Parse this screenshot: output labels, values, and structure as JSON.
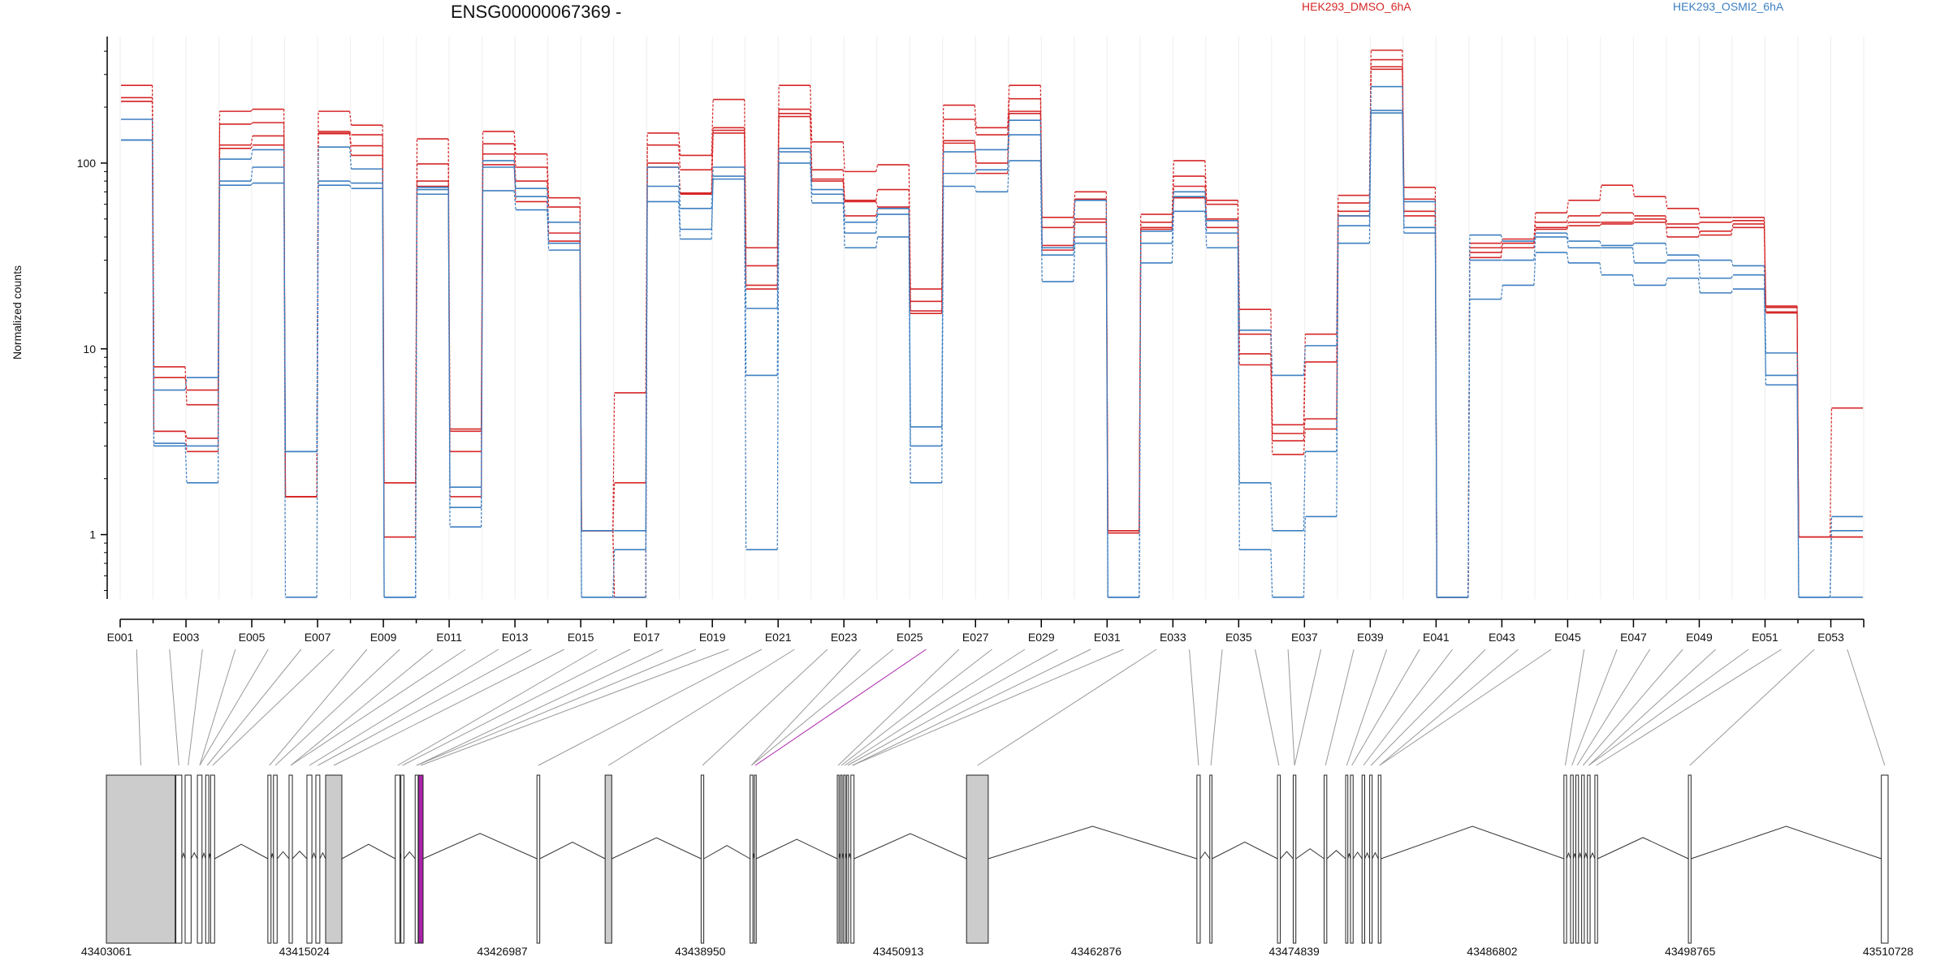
{
  "chart_data": {
    "type": "line",
    "title": "ENSG00000067369 -",
    "ylabel": "Normalized counts",
    "y_scale": "log",
    "ylim": [
      0.45,
      480
    ],
    "y_ticks": [
      1,
      10,
      100
    ],
    "y_tick_labels": [
      "1",
      "10",
      "100"
    ],
    "categories": [
      "E001",
      "E002",
      "E003",
      "E004",
      "E005",
      "E006",
      "E007",
      "E008",
      "E009",
      "E010",
      "E011",
      "E012",
      "E013",
      "E014",
      "E015",
      "E016",
      "E017",
      "E018",
      "E019",
      "E020",
      "E021",
      "E022",
      "E023",
      "E024",
      "E025",
      "E026",
      "E027",
      "E028",
      "E029",
      "E030",
      "E031",
      "E032",
      "E033",
      "E034",
      "E035",
      "E036",
      "E037",
      "E038",
      "E039",
      "E040",
      "E041",
      "E042",
      "E043",
      "E044",
      "E045",
      "E046",
      "E047",
      "E048",
      "E049",
      "E050",
      "E051",
      "E052",
      "E053"
    ],
    "x_tick_labels": [
      "E001",
      "E003",
      "E005",
      "E007",
      "E009",
      "E011",
      "E013",
      "E015",
      "E017",
      "E019",
      "E021",
      "E023",
      "E025",
      "E027",
      "E029",
      "E031",
      "E033",
      "E035",
      "E037",
      "E039",
      "E041",
      "E043",
      "E045",
      "E047",
      "E049",
      "E051",
      "E053"
    ],
    "legend": [
      {
        "name": "HEK293_DMSO_6hA",
        "color": "#d62728"
      },
      {
        "name": "HEK293_OSMI2_6hA",
        "color": "#3d7fc1"
      }
    ],
    "series": [
      {
        "name": "HEK293_DMSO_6hA",
        "color": "#d62728",
        "values": [
          262,
          8,
          5,
          190,
          195,
          1.6,
          190,
          160,
          1.9,
          135,
          3.6,
          148,
          112,
          65,
          1.05,
          5.8,
          145,
          110,
          220,
          35,
          262,
          130,
          90,
          98,
          21,
          205,
          155,
          262,
          51,
          70,
          1.05,
          53,
          103,
          63,
          16.3,
          3.9,
          12,
          67,
          405,
          74,
          0.46,
          37,
          39,
          54,
          63,
          76,
          66,
          57,
          51,
          51,
          17,
          0.97,
          4.8
        ]
      },
      {
        "name": "HEK293_DMSO_6hA",
        "color": "#d62728",
        "values": [
          225,
          7,
          6,
          162,
          165,
          1.6,
          148,
          142,
          1.9,
          99,
          3.7,
          127,
          95,
          58,
          1.05,
          1.9,
          125,
          92,
          155,
          28,
          195,
          92,
          63,
          72,
          18,
          172,
          142,
          222,
          45,
          64,
          1.05,
          48,
          85,
          60,
          12,
          3.2,
          8.5,
          61,
          360,
          64,
          0.46,
          35,
          37,
          48,
          52,
          54,
          52,
          47,
          48,
          49,
          16.7,
          0.97,
          0.97
        ]
      },
      {
        "name": "HEK293_DMSO_6hA",
        "color": "#d62728",
        "values": [
          215,
          3.6,
          3.3,
          125,
          140,
          1.6,
          144,
          124,
          0.97,
          80,
          2.8,
          112,
          80,
          42,
          1.05,
          0.46,
          100,
          68,
          145,
          22,
          185,
          80,
          52,
          57,
          16,
          128,
          100,
          185,
          36,
          50,
          1.02,
          45,
          75,
          50,
          9.4,
          3.5,
          4.2,
          55,
          330,
          55,
          0.46,
          33,
          35,
          45,
          48,
          48,
          50,
          40,
          43,
          45,
          15.8,
          0.97,
          0.97
        ]
      },
      {
        "name": "HEK293_DMSO_6hA",
        "color": "#d62728",
        "values": [
          215,
          3.6,
          2.8,
          120,
          125,
          1.6,
          145,
          110,
          0.97,
          75,
          1.6,
          98,
          62,
          38,
          1.05,
          0.46,
          95,
          69,
          150,
          21,
          178,
          82,
          62,
          58,
          15.5,
          132,
          88,
          190,
          34,
          48,
          1.02,
          44,
          65,
          45,
          8.2,
          2.7,
          3.7,
          52,
          320,
          52,
          0.46,
          31,
          37,
          44,
          46,
          47,
          48,
          45,
          41,
          47,
          15.6,
          0.97,
          0.97
        ]
      },
      {
        "name": "HEK293_OSMI2_6hA",
        "color": "#3d7fc1",
        "values": [
          172,
          6,
          7,
          105,
          118,
          2.8,
          122,
          93,
          0.46,
          74,
          1.8,
          103,
          73,
          48,
          1.05,
          1.05,
          95,
          57,
          95,
          7.2,
          120,
          72,
          48,
          57,
          3.8,
          115,
          118,
          170,
          35,
          63,
          0.46,
          43,
          70,
          49,
          12.6,
          7.2,
          10.4,
          52,
          258,
          62,
          0.46,
          41,
          38,
          42,
          38,
          36,
          37,
          32,
          30,
          28,
          9.5,
          0.46,
          1.25
        ]
      },
      {
        "name": "HEK293_OSMI2_6hA",
        "color": "#3d7fc1",
        "values": [
          133,
          3,
          3,
          80,
          95,
          2.8,
          80,
          78,
          0.46,
          72,
          1.4,
          95,
          66,
          37,
          0.46,
          0.83,
          75,
          44,
          85,
          0.83,
          115,
          68,
          42,
          53,
          3,
          88,
          92,
          142,
          32,
          40,
          0.46,
          37,
          66,
          42,
          1.9,
          1.05,
          2.8,
          46,
          192,
          45,
          0.46,
          30,
          30,
          40,
          35,
          35,
          29,
          30,
          24,
          25,
          7.2,
          0.46,
          1.05
        ]
      },
      {
        "name": "HEK293_OSMI2_6hA",
        "color": "#3d7fc1",
        "values": [
          133,
          3.1,
          1.9,
          76,
          78,
          0.46,
          76,
          73,
          0.46,
          68,
          1.1,
          71,
          56,
          34,
          0.46,
          0.46,
          62,
          39,
          82,
          16.5,
          100,
          61,
          35,
          40,
          1.9,
          75,
          70,
          103,
          23,
          37,
          0.46,
          29,
          55,
          35,
          0.83,
          0.46,
          1.25,
          37,
          186,
          42,
          0.46,
          18.5,
          22,
          33,
          29,
          25,
          22,
          24,
          20,
          21,
          6.4,
          0.46,
          0.46
        ]
      }
    ],
    "genomic_ticks": [
      "43403061",
      "43415024",
      "43426987",
      "43438950",
      "43450913",
      "43462876",
      "43474839",
      "43486802",
      "43498765",
      "43510728"
    ],
    "genomic_range": [
      43403061,
      43510728
    ],
    "exon_blocks": [
      {
        "start": 43403061,
        "end": 43407220,
        "color": "#cccccc"
      },
      {
        "start": 43407260,
        "end": 43407620,
        "color": "#ffffff"
      },
      {
        "start": 43407820,
        "end": 43408180,
        "color": "#ffffff"
      },
      {
        "start": 43408560,
        "end": 43408840,
        "color": "#ffffff"
      },
      {
        "start": 43409060,
        "end": 43409250,
        "color": "#ffffff"
      },
      {
        "start": 43409360,
        "end": 43409600,
        "color": "#ffffff"
      },
      {
        "start": 43412820,
        "end": 43413010,
        "color": "#ffffff"
      },
      {
        "start": 43413160,
        "end": 43413380,
        "color": "#ffffff"
      },
      {
        "start": 43414100,
        "end": 43414300,
        "color": "#ffffff"
      },
      {
        "start": 43415180,
        "end": 43415480,
        "color": "#ffffff"
      },
      {
        "start": 43415720,
        "end": 43415960,
        "color": "#ffffff"
      },
      {
        "start": 43416310,
        "end": 43417290,
        "color": "#cccccc"
      },
      {
        "start": 43420520,
        "end": 43420800,
        "color": "#ffffff"
      },
      {
        "start": 43420860,
        "end": 43421040,
        "color": "#ffffff"
      },
      {
        "start": 43421720,
        "end": 43421900,
        "color": "#ffffff"
      },
      {
        "start": 43421920,
        "end": 43422200,
        "color": "#aa22aa"
      },
      {
        "start": 43429080,
        "end": 43429250,
        "color": "#ffffff"
      },
      {
        "start": 43433200,
        "end": 43433600,
        "color": "#cccccc"
      },
      {
        "start": 43439000,
        "end": 43439160,
        "color": "#ffffff"
      },
      {
        "start": 43441960,
        "end": 43442130,
        "color": "#ffffff"
      },
      {
        "start": 43442220,
        "end": 43442330,
        "color": "#ffffff"
      },
      {
        "start": 43447230,
        "end": 43447330,
        "color": "#ffffff"
      },
      {
        "start": 43447420,
        "end": 43447520,
        "color": "#ffffff"
      },
      {
        "start": 43447610,
        "end": 43447720,
        "color": "#ffffff"
      },
      {
        "start": 43447800,
        "end": 43447910,
        "color": "#ffffff"
      },
      {
        "start": 43448050,
        "end": 43448240,
        "color": "#ffffff"
      },
      {
        "start": 43455040,
        "end": 43456350,
        "color": "#cccccc"
      },
      {
        "start": 43468960,
        "end": 43469160,
        "color": "#ffffff"
      },
      {
        "start": 43469740,
        "end": 43469870,
        "color": "#ffffff"
      },
      {
        "start": 43473830,
        "end": 43474000,
        "color": "#ffffff"
      },
      {
        "start": 43474780,
        "end": 43474940,
        "color": "#ffffff"
      },
      {
        "start": 43476650,
        "end": 43476810,
        "color": "#ffffff"
      },
      {
        "start": 43477950,
        "end": 43478080,
        "color": "#ffffff"
      },
      {
        "start": 43478240,
        "end": 43478400,
        "color": "#ffffff"
      },
      {
        "start": 43478940,
        "end": 43479100,
        "color": "#ffffff"
      },
      {
        "start": 43479400,
        "end": 43479550,
        "color": "#ffffff"
      },
      {
        "start": 43479920,
        "end": 43480080,
        "color": "#ffffff"
      },
      {
        "start": 43491140,
        "end": 43491300,
        "color": "#ffffff"
      },
      {
        "start": 43491540,
        "end": 43491700,
        "color": "#ffffff"
      },
      {
        "start": 43491860,
        "end": 43492020,
        "color": "#ffffff"
      },
      {
        "start": 43492210,
        "end": 43492370,
        "color": "#ffffff"
      },
      {
        "start": 43492560,
        "end": 43492720,
        "color": "#ffffff"
      },
      {
        "start": 43493010,
        "end": 43493170,
        "color": "#ffffff"
      },
      {
        "start": 43498660,
        "end": 43498820,
        "color": "#ffffff"
      },
      {
        "start": 43510320,
        "end": 43510728,
        "color": "#ffffff"
      }
    ],
    "highlighted_exon": "E025",
    "highlight_color": "#aa22aa",
    "grid": false
  }
}
